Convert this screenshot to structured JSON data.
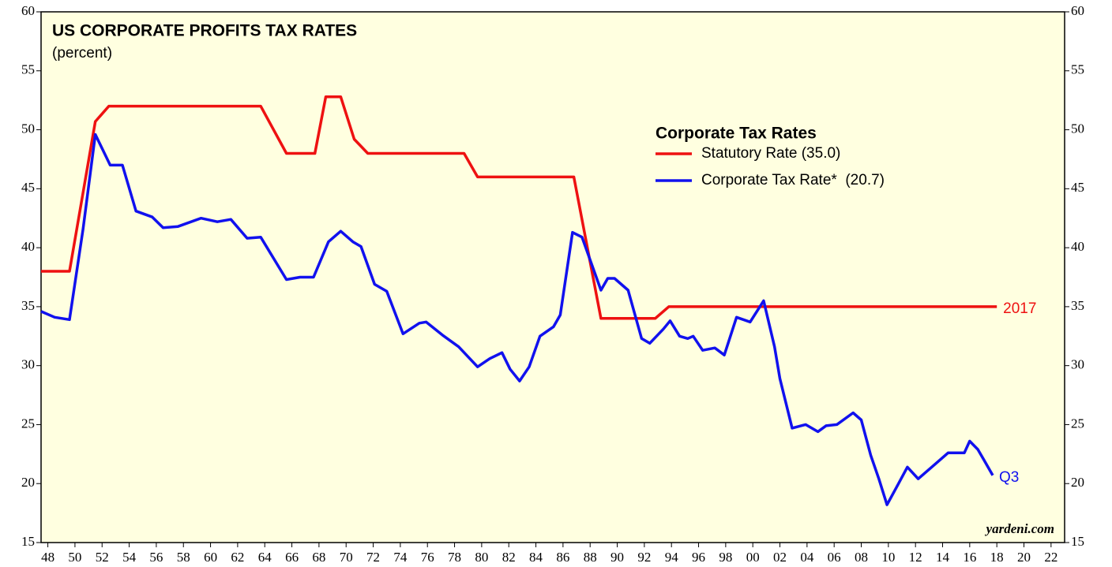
{
  "chart_data": {
    "type": "line",
    "title": "US CORPORATE PROFITS TAX RATES",
    "subtitle": "(percent)",
    "legend_title": "Corporate Tax Rates",
    "source": "yardeni.com",
    "xlim": [
      1947.5,
      2023
    ],
    "ylim": [
      15,
      60
    ],
    "yticks": [
      15,
      20,
      25,
      30,
      35,
      40,
      45,
      50,
      55,
      60
    ],
    "xticks": [
      {
        "value": 1948,
        "label": "48"
      },
      {
        "value": 1950,
        "label": "50"
      },
      {
        "value": 1952,
        "label": "52"
      },
      {
        "value": 1954,
        "label": "54"
      },
      {
        "value": 1956,
        "label": "56"
      },
      {
        "value": 1958,
        "label": "58"
      },
      {
        "value": 1960,
        "label": "60"
      },
      {
        "value": 1962,
        "label": "62"
      },
      {
        "value": 1964,
        "label": "64"
      },
      {
        "value": 1966,
        "label": "66"
      },
      {
        "value": 1968,
        "label": "68"
      },
      {
        "value": 1970,
        "label": "70"
      },
      {
        "value": 1972,
        "label": "72"
      },
      {
        "value": 1974,
        "label": "74"
      },
      {
        "value": 1976,
        "label": "76"
      },
      {
        "value": 1978,
        "label": "78"
      },
      {
        "value": 1980,
        "label": "80"
      },
      {
        "value": 1982,
        "label": "82"
      },
      {
        "value": 1984,
        "label": "84"
      },
      {
        "value": 1986,
        "label": "86"
      },
      {
        "value": 1988,
        "label": "88"
      },
      {
        "value": 1990,
        "label": "90"
      },
      {
        "value": 1992,
        "label": "92"
      },
      {
        "value": 1994,
        "label": "94"
      },
      {
        "value": 1996,
        "label": "96"
      },
      {
        "value": 1998,
        "label": "98"
      },
      {
        "value": 2000,
        "label": "00"
      },
      {
        "value": 2002,
        "label": "02"
      },
      {
        "value": 2004,
        "label": "04"
      },
      {
        "value": 2006,
        "label": "06"
      },
      {
        "value": 2008,
        "label": "08"
      },
      {
        "value": 2010,
        "label": "10"
      },
      {
        "value": 2012,
        "label": "12"
      },
      {
        "value": 2014,
        "label": "14"
      },
      {
        "value": 2016,
        "label": "16"
      },
      {
        "value": 2018,
        "label": "18"
      },
      {
        "value": 2020,
        "label": "20"
      },
      {
        "value": 2022,
        "label": "22"
      }
    ],
    "series": [
      {
        "name": "Statutory Rate (35.0)",
        "color": "#ee1111",
        "end_label": "2017",
        "x": [
          1947.5,
          1949.6,
          1951.5,
          1952.5,
          1963.7,
          1965.6,
          1967.7,
          1968.5,
          1969.6,
          1970.6,
          1971.6,
          1978.7,
          1979.7,
          1986.8,
          1988.8,
          1992.8,
          1993.8,
          2018
        ],
        "values": [
          38,
          38,
          50.7,
          52,
          52,
          48,
          48,
          52.8,
          52.8,
          49.2,
          48,
          48,
          46,
          46,
          34,
          34,
          35,
          35
        ]
      },
      {
        "name": "Corporate Tax Rate*  (20.7)",
        "color": "#1111ee",
        "end_label": "Q3",
        "x": [
          1947.5,
          1948.5,
          1949.6,
          1950.6,
          1951.5,
          1952.6,
          1953.5,
          1954.5,
          1955.7,
          1956.5,
          1957.6,
          1959.3,
          1960.5,
          1961.5,
          1962.7,
          1963.7,
          1965.6,
          1966.6,
          1967.6,
          1968.7,
          1969.6,
          1970.5,
          1971.1,
          1972.1,
          1973.0,
          1974.2,
          1975.4,
          1975.9,
          1977.1,
          1978.3,
          1979.7,
          1980.6,
          1981.5,
          1982.1,
          1982.8,
          1983.5,
          1984.3,
          1985.3,
          1985.8,
          1986.7,
          1987.4,
          1988.8,
          1989.3,
          1989.8,
          1990.8,
          1991.8,
          1992.4,
          1993.4,
          1993.9,
          1994.6,
          1995.2,
          1995.6,
          1996.3,
          1997.2,
          1997.9,
          1998.8,
          1999.8,
          2000.8,
          2001.6,
          2002.0,
          2002.9,
          2003.9,
          2004.8,
          2005.4,
          2006.2,
          2007.4,
          2008.0,
          2008.7,
          2009.3,
          2009.9,
          2010.7,
          2011.4,
          2012.2,
          2013.4,
          2014.4,
          2015.6,
          2016.0,
          2016.6,
          2017.0,
          2017.7
        ],
        "values": [
          34.6,
          34.1,
          33.9,
          41.6,
          49.6,
          47.0,
          47.0,
          43.1,
          42.6,
          41.7,
          41.8,
          42.5,
          42.2,
          42.4,
          40.8,
          40.9,
          37.3,
          37.5,
          37.5,
          40.5,
          41.4,
          40.5,
          40.1,
          36.9,
          36.3,
          32.7,
          33.6,
          33.7,
          32.6,
          31.6,
          29.9,
          30.6,
          31.1,
          29.7,
          28.7,
          29.9,
          32.5,
          33.3,
          34.3,
          41.3,
          40.9,
          36.4,
          37.4,
          37.4,
          36.4,
          32.3,
          31.9,
          33.1,
          33.8,
          32.5,
          32.3,
          32.5,
          31.3,
          31.5,
          30.9,
          34.1,
          33.7,
          35.5,
          31.6,
          28.9,
          24.7,
          25.0,
          24.4,
          24.9,
          25.0,
          26.0,
          25.4,
          22.4,
          20.4,
          18.2,
          19.9,
          21.4,
          20.4,
          21.6,
          22.6,
          22.6,
          23.6,
          22.9,
          22.1,
          20.7
        ]
      }
    ]
  }
}
